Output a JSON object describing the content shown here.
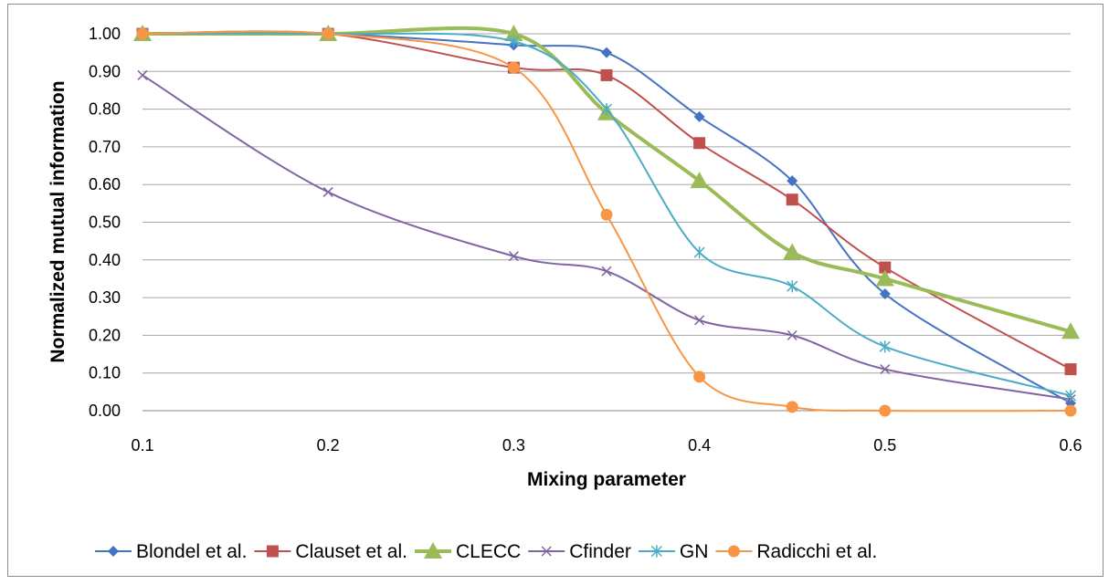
{
  "chart_data": {
    "type": "line",
    "title": "",
    "xlabel": "Mixing parameter",
    "ylabel": "Normalized mutual information",
    "x": [
      0.1,
      0.2,
      0.3,
      0.35,
      0.4,
      0.45,
      0.5,
      0.6
    ],
    "xticks": [
      "0.1",
      "0.2",
      "0.3",
      "0.4",
      "0.5",
      "0.6"
    ],
    "xtick_values": [
      0.1,
      0.2,
      0.3,
      0.4,
      0.5,
      0.6
    ],
    "yticks": [
      "0.00",
      "0.10",
      "0.20",
      "0.30",
      "0.40",
      "0.50",
      "0.60",
      "0.70",
      "0.80",
      "0.90",
      "1.00"
    ],
    "xlim": [
      0.1,
      0.6
    ],
    "ylim": [
      0,
      1
    ],
    "grid": "horizontal",
    "legend_position": "bottom",
    "series": [
      {
        "name": "Blondel et al.",
        "color": "#4472c4",
        "marker": "diamond",
        "values": [
          1.0,
          1.0,
          0.97,
          0.95,
          0.78,
          0.61,
          0.31,
          0.02
        ]
      },
      {
        "name": "Clauset et al.",
        "color": "#c0504d",
        "marker": "square",
        "values": [
          1.0,
          1.0,
          0.91,
          0.89,
          0.71,
          0.56,
          0.38,
          0.11
        ]
      },
      {
        "name": "CLECC",
        "color": "#9bbb59",
        "marker": "triangle",
        "values": [
          1.0,
          1.0,
          1.0,
          0.79,
          0.61,
          0.42,
          0.35,
          0.21
        ]
      },
      {
        "name": "Cfinder",
        "color": "#8064a2",
        "marker": "x",
        "values": [
          0.89,
          0.58,
          0.41,
          0.37,
          0.24,
          0.2,
          0.11,
          0.03
        ]
      },
      {
        "name": "GN",
        "color": "#4bacc6",
        "marker": "star",
        "values": [
          1.0,
          1.0,
          0.98,
          0.8,
          0.42,
          0.33,
          0.17,
          0.04
        ]
      },
      {
        "name": "Radicchi et al.",
        "color": "#f79646",
        "marker": "circle",
        "values": [
          1.0,
          1.0,
          0.91,
          0.52,
          0.09,
          0.01,
          0.0,
          0.0
        ]
      }
    ]
  }
}
